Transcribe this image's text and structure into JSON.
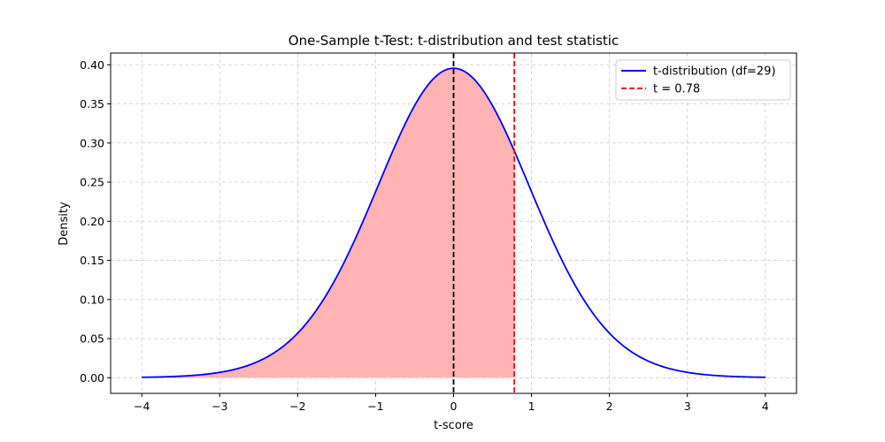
{
  "chart_data": {
    "type": "line",
    "title": "One-Sample t-Test: t-distribution and test statistic",
    "xlabel": "t-score",
    "ylabel": "Density",
    "xlim": [
      -4.4,
      4.4
    ],
    "ylim": [
      -0.02,
      0.415
    ],
    "xticks": [
      -4,
      -3,
      -2,
      -1,
      0,
      1,
      2,
      3,
      4
    ],
    "xtick_labels": [
      "−4",
      "−3",
      "−2",
      "−1",
      "0",
      "1",
      "2",
      "3",
      "4"
    ],
    "yticks": [
      0,
      0.05,
      0.1,
      0.15,
      0.2,
      0.25,
      0.3,
      0.35,
      0.4
    ],
    "ytick_labels": [
      "0.00",
      "0.05",
      "0.10",
      "0.15",
      "0.20",
      "0.25",
      "0.30",
      "0.35",
      "0.40"
    ],
    "grid": true,
    "legend_position": "top-right",
    "distribution": {
      "name": "t-distribution (df=29)",
      "df": 29,
      "x_range": [
        -4,
        4
      ],
      "color": "#0000ff"
    },
    "test_statistic": {
      "name": "t = 0.78",
      "value": 0.78,
      "color": "#ff0000"
    },
    "mean_line": {
      "value": 0,
      "color": "#000000"
    },
    "shaded_region": {
      "from": -4,
      "to": 0.78,
      "color": "#ffb3b3"
    }
  }
}
